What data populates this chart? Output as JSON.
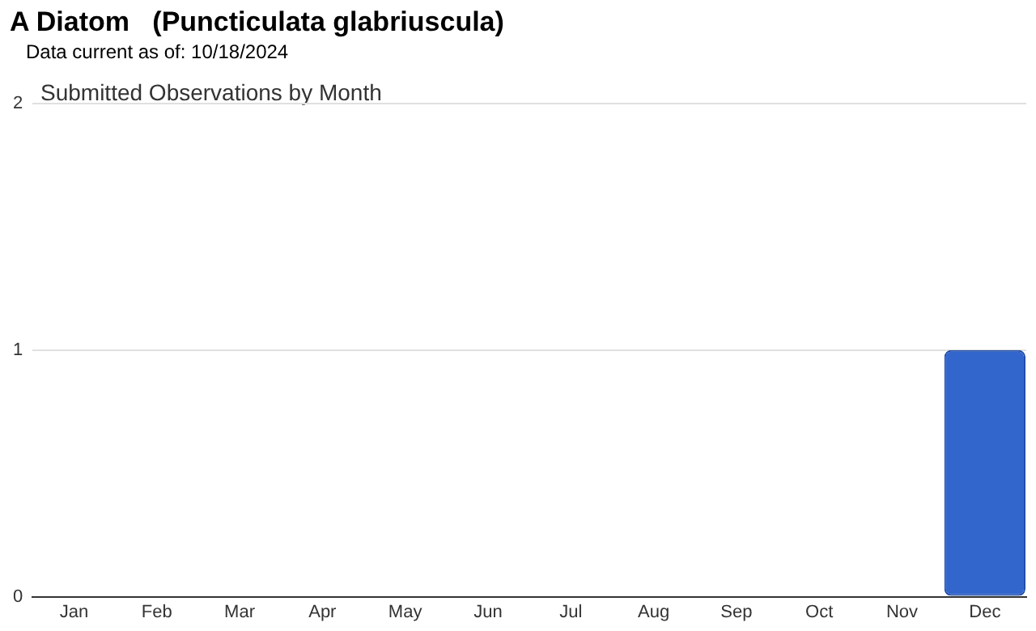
{
  "chart_data": {
    "type": "bar",
    "title": "A Diatom   (Puncticulata glabriuscula)",
    "subtitle": "Data current as of: 10/18/2024",
    "annotations": [
      "Submitted Observations by Month"
    ],
    "categories": [
      "Jan",
      "Feb",
      "Mar",
      "Apr",
      "May",
      "Jun",
      "Jul",
      "Aug",
      "Sep",
      "Oct",
      "Nov",
      "Dec"
    ],
    "values": [
      0,
      0,
      0,
      0,
      0,
      0,
      0,
      0,
      0,
      0,
      0,
      1
    ],
    "color": "#3366cc",
    "ylim": [
      0,
      2
    ],
    "yticks": [
      0,
      1,
      2
    ],
    "grid": "y"
  }
}
